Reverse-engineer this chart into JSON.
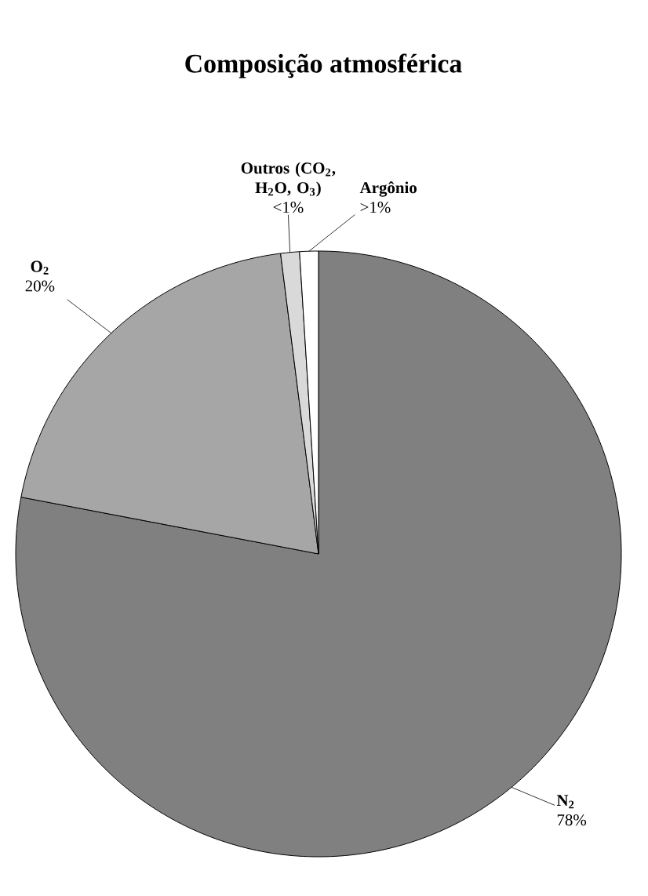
{
  "chart_data": {
    "type": "pie",
    "title": "Composição atmosférica",
    "categories": [
      "N$_{2}$",
      "O$_{2}$",
      "Outros (CO$_{2}$, H$_{2}$O, O$_{3}$)",
      "Argônio"
    ],
    "values": [
      78,
      20,
      1,
      1
    ],
    "value_labels": [
      "78%",
      "20%",
      "<1%",
      ">1%"
    ],
    "colors": [
      "#808080",
      "#a6a6a6",
      "#d9d9d9",
      "#ffffff"
    ]
  }
}
